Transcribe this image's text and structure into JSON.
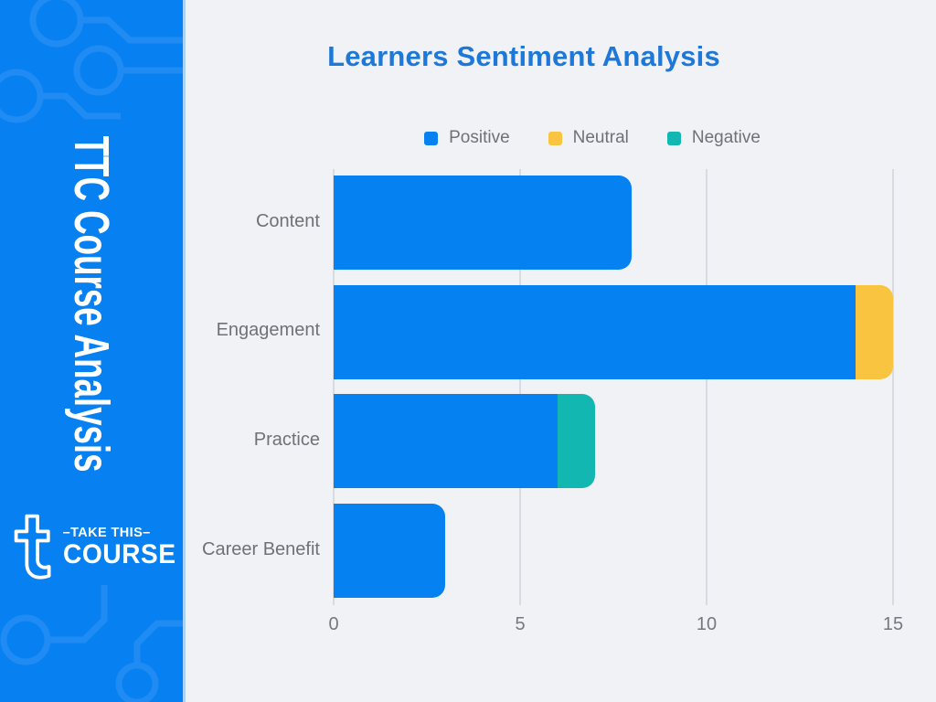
{
  "sidebar": {
    "background_color": "#0781f1",
    "pattern_color": "#3896f5",
    "vertical_title": "TTC Course Analysis",
    "logo": {
      "icon": "take-this-course-t-icon",
      "line1": "–TAKE THIS–",
      "line2": "COURSE",
      "text_color": "#ffffff"
    }
  },
  "main": {
    "background_color": "#f0f2f6",
    "title": "Learners Sentiment Analysis",
    "title_color": "#1e78d8",
    "label_color": "#6e7175"
  },
  "chart_data": {
    "type": "bar",
    "orientation": "horizontal",
    "stacked": true,
    "title": "Learners Sentiment Analysis",
    "categories": [
      "Content",
      "Engagement",
      "Practice",
      "Career Benefit"
    ],
    "series": [
      {
        "name": "Positive",
        "color": "#0681f1",
        "values": [
          8,
          14,
          6,
          3
        ]
      },
      {
        "name": "Neutral",
        "color": "#f9c440",
        "values": [
          0,
          1,
          0,
          0
        ]
      },
      {
        "name": "Negative",
        "color": "#12b7b2",
        "values": [
          0,
          0,
          1,
          0
        ]
      }
    ],
    "x_ticks": [
      0,
      5,
      10,
      15
    ],
    "xlim": [
      0,
      15
    ],
    "grid": true,
    "gridline_color": "#d8dbe1",
    "legend_position": "top"
  }
}
